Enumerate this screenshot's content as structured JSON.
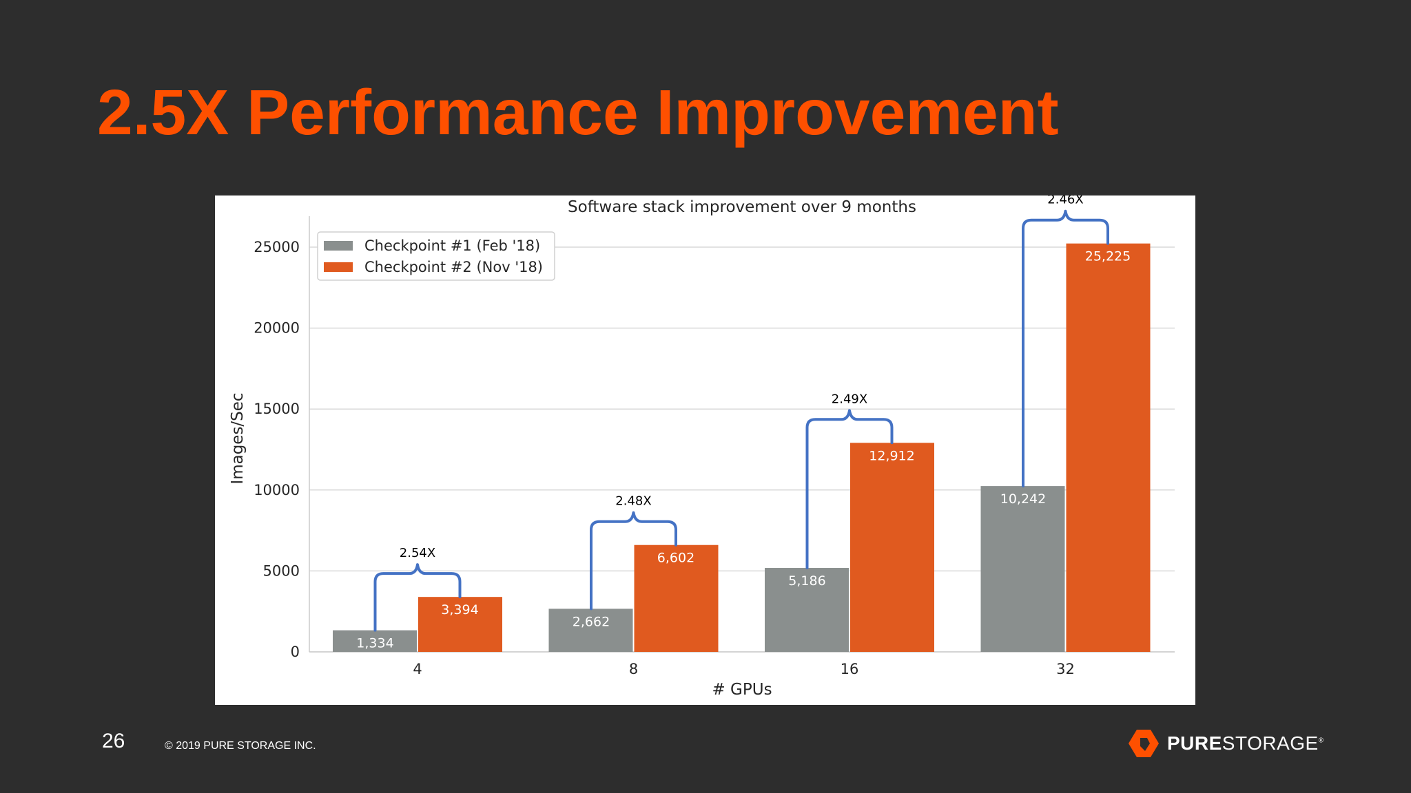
{
  "slide": {
    "title": "2.5X Performance Improvement",
    "page_number": "26",
    "copyright": "© 2019 PURE STORAGE INC.",
    "brand_bold": "PURE",
    "brand_light": "STORAGE",
    "brand_mark": "®"
  },
  "colors": {
    "background": "#2d2d2d",
    "title": "#fe5000",
    "series1": "#8a8f8e",
    "series2": "#e05a1f",
    "bracket": "#4472c4"
  },
  "chart_data": {
    "type": "bar",
    "title": "Software stack improvement over 9 months",
    "xlabel": "# GPUs",
    "ylabel": "Images/Sec",
    "categories": [
      "4",
      "8",
      "16",
      "32"
    ],
    "ylim": [
      0,
      25000
    ],
    "yticks": [
      "0",
      "5000",
      "10000",
      "15000",
      "20000",
      "25000"
    ],
    "grid": true,
    "legend_position": "top-left",
    "series": [
      {
        "name": "Checkpoint #1 (Feb '18)",
        "values": [
          1334,
          2662,
          5186,
          10242
        ],
        "labels": [
          "1,334",
          "2,662",
          "5,186",
          "10,242"
        ]
      },
      {
        "name": "Checkpoint #2 (Nov '18)",
        "values": [
          3394,
          6602,
          12912,
          25225
        ],
        "labels": [
          "3,394",
          "6,602",
          "12,912",
          "25,225"
        ]
      }
    ],
    "annotations": [
      "2.54X",
      "2.48X",
      "2.49X",
      "2.46X"
    ]
  }
}
